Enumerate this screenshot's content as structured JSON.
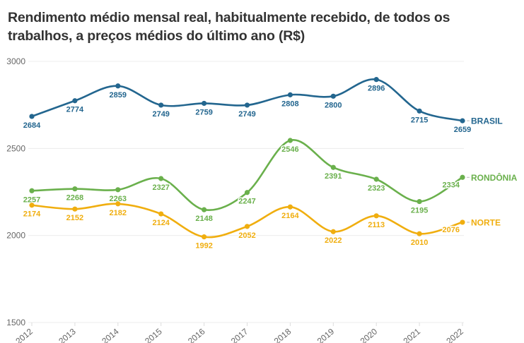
{
  "chart_data": {
    "type": "line",
    "title": "Rendimento médio mensal real, habitualmente recebido, de todos os trabalhos, a preços médios do último ano (R$)",
    "xlabel": "",
    "ylabel": "",
    "x": [
      "2012",
      "2013",
      "2014",
      "2015",
      "2016",
      "2017",
      "2018",
      "2019",
      "2020",
      "2021",
      "2022"
    ],
    "ylim": [
      1500,
      3000
    ],
    "yticks": [
      "3000",
      "2500",
      "2000",
      "1500"
    ],
    "grid": true,
    "legend": "direct-labels-right",
    "series": [
      {
        "name": "BRASIL",
        "color": "#23668f",
        "values": [
          2684,
          2774,
          2859,
          2749,
          2759,
          2749,
          2808,
          2800,
          2896,
          2715,
          2659
        ],
        "label_pos": [
          "below",
          "below",
          "below",
          "below",
          "below",
          "below",
          "below",
          "below",
          "below",
          "below",
          "below"
        ]
      },
      {
        "name": "RONDÔNIA",
        "color": "#6ab04c",
        "values": [
          2257,
          2268,
          2263,
          2327,
          2148,
          2247,
          2546,
          2391,
          2323,
          2195,
          2334
        ],
        "label_pos": [
          "below",
          "below",
          "below",
          "below",
          "below",
          "below",
          "below",
          "below",
          "below",
          "below",
          "below-left"
        ]
      },
      {
        "name": "NORTE",
        "color": "#f0ae0f",
        "values": [
          2174,
          2152,
          2182,
          2124,
          1992,
          2052,
          2164,
          2022,
          2113,
          2010,
          2076
        ],
        "label_pos": [
          "below",
          "below",
          "below",
          "below",
          "below",
          "below",
          "below",
          "below",
          "below",
          "below",
          "below-left"
        ]
      }
    ]
  }
}
